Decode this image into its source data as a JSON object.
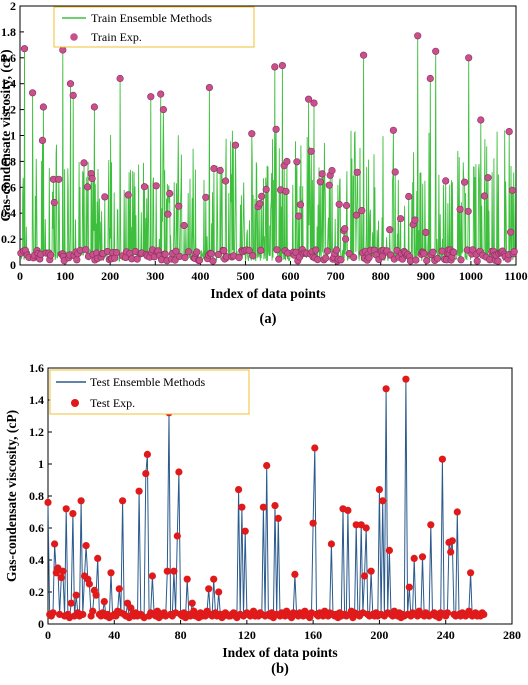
{
  "chart_data": [
    {
      "type": "line",
      "caption": "(a)",
      "xlabel": "Index of data points",
      "ylabel": "Gas-condensate viscosity, (cP)",
      "xlim": [
        0,
        1100
      ],
      "ylim": [
        0,
        2
      ],
      "xticks": [
        0,
        100,
        200,
        300,
        400,
        500,
        600,
        700,
        800,
        900,
        1000,
        1100
      ],
      "yticks": [
        0,
        0.2,
        0.4,
        0.6,
        0.8,
        1,
        1.2,
        1.4,
        1.6,
        1.8,
        2
      ],
      "legend_position": "top-left",
      "grid": false,
      "series": [
        {
          "name": "Train Ensemble Methods",
          "kind": "line",
          "color": "#3dbf3d"
        },
        {
          "name": "Train Exp.",
          "kind": "scatter",
          "color": "#c8508c"
        }
      ],
      "peaks": [
        {
          "x": 10,
          "y": 1.67
        },
        {
          "x": 28,
          "y": 1.33
        },
        {
          "x": 52,
          "y": 1.22
        },
        {
          "x": 95,
          "y": 1.66
        },
        {
          "x": 112,
          "y": 1.4
        },
        {
          "x": 118,
          "y": 1.31
        },
        {
          "x": 165,
          "y": 1.22
        },
        {
          "x": 222,
          "y": 1.44
        },
        {
          "x": 290,
          "y": 1.3
        },
        {
          "x": 312,
          "y": 1.32
        },
        {
          "x": 318,
          "y": 1.2
        },
        {
          "x": 420,
          "y": 1.37
        },
        {
          "x": 565,
          "y": 1.53
        },
        {
          "x": 582,
          "y": 1.54
        },
        {
          "x": 640,
          "y": 1.28
        },
        {
          "x": 652,
          "y": 1.25
        },
        {
          "x": 762,
          "y": 1.62
        },
        {
          "x": 882,
          "y": 1.77
        },
        {
          "x": 910,
          "y": 1.44
        },
        {
          "x": 922,
          "y": 1.65
        },
        {
          "x": 995,
          "y": 1.6
        },
        {
          "x": 1022,
          "y": 1.12
        },
        {
          "x": 1085,
          "y": 1.03
        }
      ],
      "exp_points_sampled": 300
    },
    {
      "type": "line",
      "caption": "(b)",
      "xlabel": "Index of data points",
      "ylabel": "Gas-condensate viscosity, (cP)",
      "xlim": [
        0,
        280
      ],
      "ylim": [
        0,
        1.6
      ],
      "xticks": [
        0,
        40,
        80,
        120,
        160,
        200,
        240,
        280
      ],
      "yticks": [
        0,
        0.2,
        0.4,
        0.6,
        0.8,
        1,
        1.2,
        1.4,
        1.6
      ],
      "legend_position": "top-left",
      "grid": false,
      "series": [
        {
          "name": "Test Ensemble Methods",
          "kind": "line",
          "color": "#2b5a8c"
        },
        {
          "name": "Test Exp.",
          "kind": "scatter",
          "color": "#e01a1a"
        }
      ],
      "points": [
        [
          0,
          0.76
        ],
        [
          1,
          0.06
        ],
        [
          2,
          0.05
        ],
        [
          3,
          0.07
        ],
        [
          4,
          0.5
        ],
        [
          5,
          0.32
        ],
        [
          6,
          0.35
        ],
        [
          7,
          0.06
        ],
        [
          8,
          0.29
        ],
        [
          9,
          0.33
        ],
        [
          10,
          0.05
        ],
        [
          11,
          0.72
        ],
        [
          12,
          0.06
        ],
        [
          13,
          0.04
        ],
        [
          14,
          0.13
        ],
        [
          15,
          0.69
        ],
        [
          16,
          0.05
        ],
        [
          17,
          0.18
        ],
        [
          18,
          0.07
        ],
        [
          19,
          0.05
        ],
        [
          20,
          0.77
        ],
        [
          21,
          0.06
        ],
        [
          22,
          0.3
        ],
        [
          23,
          0.49
        ],
        [
          24,
          0.28
        ],
        [
          25,
          0.25
        ],
        [
          26,
          0.05
        ],
        [
          27,
          0.08
        ],
        [
          28,
          0.21
        ],
        [
          29,
          0.18
        ],
        [
          30,
          0.41
        ],
        [
          31,
          0.06
        ],
        [
          32,
          0.05
        ],
        [
          33,
          0.07
        ],
        [
          34,
          0.14
        ],
        [
          35,
          0.05
        ],
        [
          36,
          0.06
        ],
        [
          37,
          0.04
        ],
        [
          38,
          0.32
        ],
        [
          39,
          0.05
        ],
        [
          40,
          0.06
        ],
        [
          41,
          0.05
        ],
        [
          42,
          0.08
        ],
        [
          43,
          0.22
        ],
        [
          44,
          0.07
        ],
        [
          45,
          0.77
        ],
        [
          46,
          0.06
        ],
        [
          47,
          0.05
        ],
        [
          48,
          0.13
        ],
        [
          49,
          0.04
        ],
        [
          50,
          0.1
        ],
        [
          51,
          0.06
        ],
        [
          52,
          0.05
        ],
        [
          53,
          0.07
        ],
        [
          54,
          0.05
        ],
        [
          55,
          0.83
        ],
        [
          56,
          0.06
        ],
        [
          57,
          0.05
        ],
        [
          58,
          0.04
        ],
        [
          59,
          0.94
        ],
        [
          60,
          1.06
        ],
        [
          61,
          0.05
        ],
        [
          62,
          0.07
        ],
        [
          63,
          0.3
        ],
        [
          64,
          0.06
        ],
        [
          65,
          0.05
        ],
        [
          66,
          0.08
        ],
        [
          67,
          0.04
        ],
        [
          68,
          0.05
        ],
        [
          69,
          0.06
        ],
        [
          70,
          0.07
        ],
        [
          71,
          0.05
        ],
        [
          72,
          0.33
        ],
        [
          73,
          1.32
        ],
        [
          74,
          0.06
        ],
        [
          75,
          0.05
        ],
        [
          76,
          0.33
        ],
        [
          77,
          0.07
        ],
        [
          78,
          0.55
        ],
        [
          79,
          0.95
        ],
        [
          80,
          0.06
        ],
        [
          81,
          0.05
        ],
        [
          82,
          0.07
        ],
        [
          83,
          0.04
        ],
        [
          84,
          0.28
        ],
        [
          85,
          0.06
        ],
        [
          86,
          0.05
        ],
        [
          87,
          0.13
        ],
        [
          88,
          0.08
        ],
        [
          89,
          0.05
        ],
        [
          90,
          0.06
        ],
        [
          91,
          0.04
        ],
        [
          92,
          0.07
        ],
        [
          93,
          0.05
        ],
        [
          94,
          0.06
        ],
        [
          95,
          0.05
        ],
        [
          96,
          0.08
        ],
        [
          97,
          0.22
        ],
        [
          98,
          0.06
        ],
        [
          99,
          0.05
        ],
        [
          100,
          0.28
        ],
        [
          101,
          0.07
        ],
        [
          102,
          0.05
        ],
        [
          103,
          0.2
        ],
        [
          104,
          0.06
        ],
        [
          105,
          0.04
        ],
        [
          106,
          0.05
        ],
        [
          107,
          0.07
        ],
        [
          108,
          0.06
        ],
        [
          109,
          0.05
        ],
        [
          110,
          0.05
        ],
        [
          111,
          0.06
        ],
        [
          112,
          0.07
        ],
        [
          113,
          0.05
        ],
        [
          114,
          0.04
        ],
        [
          115,
          0.84
        ],
        [
          116,
          0.06
        ],
        [
          117,
          0.73
        ],
        [
          118,
          0.05
        ],
        [
          119,
          0.58
        ],
        [
          120,
          0.07
        ],
        [
          121,
          0.06
        ],
        [
          122,
          0.05
        ],
        [
          123,
          0.06
        ],
        [
          124,
          0.08
        ],
        [
          125,
          0.05
        ],
        [
          126,
          0.06
        ],
        [
          127,
          0.05
        ],
        [
          128,
          0.07
        ],
        [
          129,
          0.06
        ],
        [
          130,
          0.73
        ],
        [
          131,
          0.05
        ],
        [
          132,
          0.99
        ],
        [
          133,
          0.06
        ],
        [
          134,
          0.05
        ],
        [
          135,
          0.07
        ],
        [
          136,
          0.04
        ],
        [
          137,
          0.74
        ],
        [
          138,
          0.06
        ],
        [
          139,
          0.66
        ],
        [
          140,
          0.05
        ],
        [
          141,
          0.07
        ],
        [
          142,
          0.06
        ],
        [
          143,
          0.05
        ],
        [
          144,
          0.08
        ],
        [
          145,
          0.06
        ],
        [
          146,
          0.05
        ],
        [
          147,
          0.04
        ],
        [
          148,
          0.07
        ],
        [
          149,
          0.31
        ],
        [
          150,
          0.06
        ],
        [
          151,
          0.05
        ],
        [
          152,
          0.07
        ],
        [
          153,
          0.06
        ],
        [
          154,
          0.05
        ],
        [
          155,
          0.08
        ],
        [
          156,
          0.06
        ],
        [
          157,
          0.05
        ],
        [
          158,
          0.04
        ],
        [
          159,
          0.07
        ],
        [
          160,
          0.63
        ],
        [
          161,
          1.1
        ],
        [
          162,
          0.06
        ],
        [
          163,
          0.05
        ],
        [
          164,
          0.07
        ],
        [
          165,
          0.06
        ],
        [
          166,
          0.05
        ],
        [
          167,
          0.08
        ],
        [
          168,
          0.06
        ],
        [
          169,
          0.05
        ],
        [
          170,
          0.07
        ],
        [
          171,
          0.5
        ],
        [
          172,
          0.06
        ],
        [
          173,
          0.05
        ],
        [
          174,
          0.06
        ],
        [
          175,
          0.04
        ],
        [
          176,
          0.07
        ],
        [
          177,
          0.05
        ],
        [
          178,
          0.72
        ],
        [
          179,
          0.06
        ],
        [
          180,
          0.05
        ],
        [
          181,
          0.71
        ],
        [
          182,
          0.06
        ],
        [
          183,
          0.08
        ],
        [
          184,
          0.04
        ],
        [
          185,
          0.07
        ],
        [
          186,
          0.62
        ],
        [
          187,
          0.06
        ],
        [
          188,
          0.05
        ],
        [
          189,
          0.62
        ],
        [
          190,
          0.07
        ],
        [
          191,
          0.3
        ],
        [
          192,
          0.6
        ],
        [
          193,
          0.06
        ],
        [
          194,
          0.05
        ],
        [
          195,
          0.33
        ],
        [
          196,
          0.06
        ],
        [
          197,
          0.05
        ],
        [
          198,
          0.07
        ],
        [
          199,
          0.05
        ],
        [
          200,
          0.84
        ],
        [
          201,
          0.06
        ],
        [
          202,
          0.77
        ],
        [
          203,
          0.05
        ],
        [
          204,
          1.47
        ],
        [
          205,
          0.07
        ],
        [
          206,
          0.46
        ],
        [
          207,
          0.06
        ],
        [
          208,
          0.05
        ],
        [
          209,
          0.08
        ],
        [
          210,
          0.06
        ],
        [
          211,
          0.05
        ],
        [
          212,
          0.07
        ],
        [
          213,
          0.04
        ],
        [
          214,
          0.06
        ],
        [
          215,
          0.05
        ],
        [
          216,
          1.53
        ],
        [
          217,
          0.06
        ],
        [
          218,
          0.23
        ],
        [
          219,
          0.05
        ],
        [
          220,
          0.07
        ],
        [
          221,
          0.41
        ],
        [
          222,
          0.06
        ],
        [
          223,
          0.05
        ],
        [
          224,
          0.08
        ],
        [
          225,
          0.06
        ],
        [
          226,
          0.42
        ],
        [
          227,
          0.05
        ],
        [
          228,
          0.07
        ],
        [
          229,
          0.06
        ],
        [
          230,
          0.05
        ],
        [
          231,
          0.62
        ],
        [
          232,
          0.06
        ],
        [
          233,
          0.07
        ],
        [
          234,
          0.05
        ],
        [
          235,
          0.06
        ],
        [
          236,
          0.04
        ],
        [
          237,
          0.07
        ],
        [
          238,
          1.03
        ],
        [
          239,
          0.06
        ],
        [
          240,
          0.05
        ],
        [
          241,
          0.07
        ],
        [
          242,
          0.51
        ],
        [
          243,
          0.45
        ],
        [
          244,
          0.52
        ],
        [
          245,
          0.06
        ],
        [
          246,
          0.05
        ],
        [
          247,
          0.7
        ],
        [
          248,
          0.06
        ],
        [
          249,
          0.05
        ],
        [
          250,
          0.07
        ],
        [
          251,
          0.06
        ],
        [
          252,
          0.05
        ],
        [
          253,
          0.06
        ],
        [
          254,
          0.08
        ],
        [
          255,
          0.32
        ],
        [
          256,
          0.05
        ],
        [
          257,
          0.06
        ],
        [
          258,
          0.07
        ],
        [
          259,
          0.05
        ],
        [
          260,
          0.06
        ],
        [
          261,
          0.05
        ],
        [
          262,
          0.07
        ],
        [
          263,
          0.06
        ]
      ]
    }
  ]
}
